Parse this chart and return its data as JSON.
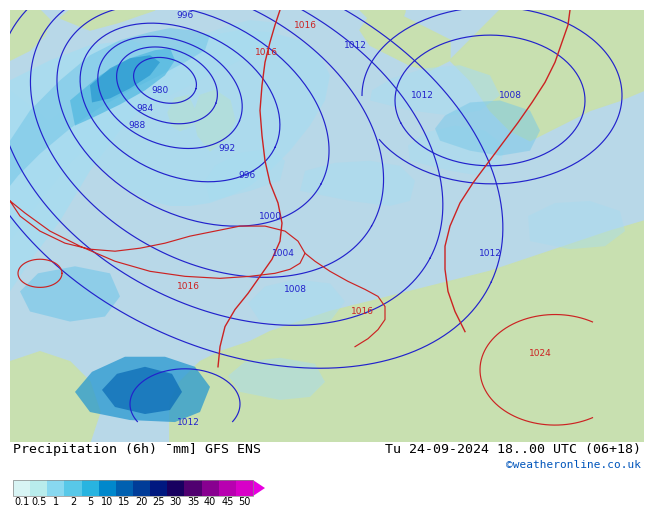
{
  "title_left": "Precipitation (6h) ¯mm] GFS ENS",
  "title_right": "Tu 24-09-2024 18..00 UTC (06+18)",
  "credit": "©weatheronline.co.uk",
  "colorbar_labels": [
    "0.1",
    "0.5",
    "1",
    "2",
    "5",
    "10",
    "15",
    "20",
    "25",
    "30",
    "35",
    "40",
    "45",
    "50"
  ],
  "colorbar_colors": [
    "#d8f4f4",
    "#b8ecec",
    "#88d8f0",
    "#58c8e8",
    "#28b4e0",
    "#0088cc",
    "#0060b0",
    "#003c98",
    "#001880",
    "#180060",
    "#500070",
    "#880090",
    "#b800b0",
    "#d800c8"
  ],
  "colorbar_arrow_color": "#e800e0",
  "bg_color": "#ffffff",
  "sea_color": "#b8d8e8",
  "land_color": "#c8e0b0",
  "isobar_blue": "#2222cc",
  "isobar_red": "#cc2222",
  "precip_colors": {
    "light": "#a8dcf0",
    "medium": "#78c8e8",
    "medium2": "#50b8e0",
    "dark": "#2898d0",
    "darker": "#1070b8"
  },
  "title_fontsize": 9.5,
  "credit_fontsize": 8,
  "tick_fontsize": 7,
  "label_fontsize": 6.5
}
